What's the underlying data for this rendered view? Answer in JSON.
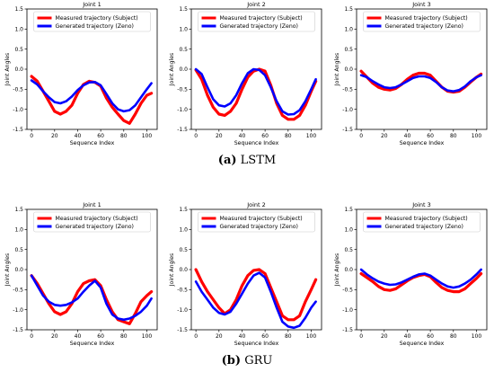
{
  "captions": [
    {
      "label": "(a)",
      "text": "LSTM"
    },
    {
      "label": "(b)",
      "text": "GRU"
    }
  ],
  "colors": {
    "measured": "#ff0000",
    "generated": "#0000ff"
  },
  "chart_data": [
    {
      "type": "line",
      "panel": "LSTM",
      "title": "Joint 1",
      "xlabel": "Sequence Index",
      "ylabel": "Joint Angles",
      "xlim": [
        -4,
        109
      ],
      "ylim": [
        -1.5,
        1.5
      ],
      "xticks": [
        0,
        20,
        40,
        60,
        80,
        100
      ],
      "yticks": [
        "1.5",
        "1.0",
        "0.5",
        "0.0",
        "-0.5",
        "-1.0",
        "-1.5"
      ],
      "legend": "upper center",
      "grid": false,
      "x": [
        0,
        5,
        10,
        15,
        20,
        25,
        30,
        35,
        40,
        45,
        50,
        55,
        60,
        65,
        70,
        75,
        80,
        85,
        90,
        95,
        100,
        104
      ],
      "series": [
        {
          "name": "Measured trajectory (Subject)",
          "values": [
            -0.18,
            -0.3,
            -0.55,
            -0.8,
            -1.05,
            -1.12,
            -1.05,
            -0.9,
            -0.6,
            -0.38,
            -0.3,
            -0.33,
            -0.42,
            -0.72,
            -0.95,
            -1.12,
            -1.28,
            -1.35,
            -1.12,
            -0.85,
            -0.65,
            -0.6
          ]
        },
        {
          "name": "Generated trajectory (Zeno)",
          "values": [
            -0.28,
            -0.38,
            -0.55,
            -0.7,
            -0.82,
            -0.85,
            -0.8,
            -0.68,
            -0.52,
            -0.4,
            -0.33,
            -0.32,
            -0.4,
            -0.62,
            -0.85,
            -1.0,
            -1.05,
            -1.02,
            -0.9,
            -0.7,
            -0.5,
            -0.35
          ]
        }
      ]
    },
    {
      "type": "line",
      "panel": "LSTM",
      "title": "Joint 2",
      "xlabel": "Sequence Index",
      "ylabel": "Joint Angles",
      "xlim": [
        -4,
        109
      ],
      "ylim": [
        -1.5,
        1.5
      ],
      "xticks": [
        0,
        20,
        40,
        60,
        80,
        100
      ],
      "yticks": [
        "1.5",
        "1.0",
        "0.5",
        "0.0",
        "-0.5",
        "-1.0",
        "-1.5"
      ],
      "legend": "upper center",
      "grid": false,
      "x": [
        0,
        5,
        10,
        15,
        20,
        25,
        30,
        35,
        40,
        45,
        50,
        55,
        60,
        65,
        70,
        75,
        80,
        85,
        90,
        95,
        100,
        104
      ],
      "series": [
        {
          "name": "Measured trajectory (Subject)",
          "values": [
            -0.02,
            -0.25,
            -0.65,
            -0.95,
            -1.12,
            -1.15,
            -1.05,
            -0.85,
            -0.5,
            -0.2,
            -0.05,
            0.0,
            -0.05,
            -0.4,
            -0.85,
            -1.15,
            -1.25,
            -1.25,
            -1.15,
            -0.9,
            -0.55,
            -0.3
          ]
        },
        {
          "name": "Generated trajectory (Zeno)",
          "values": [
            0.0,
            -0.12,
            -0.45,
            -0.75,
            -0.9,
            -0.93,
            -0.85,
            -0.65,
            -0.35,
            -0.1,
            0.0,
            -0.02,
            -0.15,
            -0.45,
            -0.8,
            -1.05,
            -1.13,
            -1.12,
            -1.02,
            -0.8,
            -0.5,
            -0.25
          ]
        }
      ]
    },
    {
      "type": "line",
      "panel": "LSTM",
      "title": "Joint 3",
      "xlabel": "Sequence Index",
      "ylabel": "Joint Angles",
      "xlim": [
        -4,
        109
      ],
      "ylim": [
        -1.5,
        1.5
      ],
      "xticks": [
        0,
        20,
        40,
        60,
        80,
        100
      ],
      "yticks": [
        "1.5",
        "1.0",
        "0.5",
        "0.0",
        "-0.5",
        "-1.0",
        "-1.5"
      ],
      "legend": "upper center",
      "grid": false,
      "x": [
        0,
        5,
        10,
        15,
        20,
        25,
        30,
        35,
        40,
        45,
        50,
        55,
        60,
        65,
        70,
        75,
        80,
        85,
        90,
        95,
        100,
        104
      ],
      "series": [
        {
          "name": "Measured trajectory (Subject)",
          "values": [
            -0.05,
            -0.2,
            -0.35,
            -0.45,
            -0.5,
            -0.52,
            -0.48,
            -0.38,
            -0.25,
            -0.15,
            -0.1,
            -0.1,
            -0.15,
            -0.3,
            -0.45,
            -0.55,
            -0.57,
            -0.55,
            -0.45,
            -0.32,
            -0.2,
            -0.12
          ]
        },
        {
          "name": "Generated trajectory (Zeno)",
          "values": [
            -0.15,
            -0.2,
            -0.3,
            -0.38,
            -0.45,
            -0.47,
            -0.45,
            -0.38,
            -0.3,
            -0.22,
            -0.18,
            -0.18,
            -0.22,
            -0.32,
            -0.45,
            -0.53,
            -0.55,
            -0.52,
            -0.43,
            -0.3,
            -0.2,
            -0.15
          ]
        }
      ]
    },
    {
      "type": "line",
      "panel": "GRU",
      "title": "Joint 1",
      "xlabel": "Sequence Index",
      "ylabel": "Joint Angles",
      "xlim": [
        -4,
        109
      ],
      "ylim": [
        -1.5,
        1.5
      ],
      "xticks": [
        0,
        20,
        40,
        60,
        80,
        100
      ],
      "yticks": [
        "1.5",
        "1.0",
        "0.5",
        "0.0",
        "-0.5",
        "-1.0",
        "-1.5"
      ],
      "legend": "upper center",
      "grid": false,
      "x": [
        0,
        5,
        10,
        15,
        20,
        25,
        30,
        35,
        40,
        45,
        50,
        55,
        60,
        65,
        70,
        75,
        80,
        85,
        90,
        95,
        100,
        104
      ],
      "series": [
        {
          "name": "Measured trajectory (Subject)",
          "values": [
            -0.15,
            -0.35,
            -0.6,
            -0.85,
            -1.05,
            -1.12,
            -1.05,
            -0.85,
            -0.55,
            -0.35,
            -0.28,
            -0.25,
            -0.4,
            -0.75,
            -1.05,
            -1.25,
            -1.3,
            -1.35,
            -1.1,
            -0.8,
            -0.65,
            -0.55
          ]
        },
        {
          "name": "Generated trajectory (Zeno)",
          "values": [
            -0.15,
            -0.4,
            -0.65,
            -0.8,
            -0.88,
            -0.9,
            -0.88,
            -0.82,
            -0.72,
            -0.55,
            -0.4,
            -0.28,
            -0.45,
            -0.85,
            -1.12,
            -1.22,
            -1.25,
            -1.22,
            -1.15,
            -1.05,
            -0.9,
            -0.72
          ]
        }
      ]
    },
    {
      "type": "line",
      "panel": "GRU",
      "title": "Joint 2",
      "xlabel": "Sequence Index",
      "ylabel": "Joint Angles",
      "xlim": [
        -4,
        109
      ],
      "ylim": [
        -1.5,
        1.5
      ],
      "xticks": [
        0,
        20,
        40,
        60,
        80,
        100
      ],
      "yticks": [
        "1.5",
        "1.0",
        "0.5",
        "0.0",
        "-0.5",
        "-1.0",
        "-1.5"
      ],
      "legend": "upper center",
      "grid": false,
      "x": [
        0,
        5,
        10,
        15,
        20,
        25,
        30,
        35,
        40,
        45,
        50,
        55,
        60,
        65,
        70,
        75,
        80,
        85,
        90,
        95,
        100,
        104
      ],
      "series": [
        {
          "name": "Measured trajectory (Subject)",
          "values": [
            0.0,
            -0.3,
            -0.55,
            -0.75,
            -0.95,
            -1.1,
            -1.0,
            -0.75,
            -0.4,
            -0.15,
            -0.02,
            0.0,
            -0.1,
            -0.45,
            -0.8,
            -1.15,
            -1.25,
            -1.25,
            -1.15,
            -0.8,
            -0.5,
            -0.25
          ]
        },
        {
          "name": "Generated trajectory (Zeno)",
          "values": [
            -0.3,
            -0.55,
            -0.75,
            -0.95,
            -1.08,
            -1.12,
            -1.05,
            -0.85,
            -0.6,
            -0.35,
            -0.15,
            -0.08,
            -0.2,
            -0.55,
            -0.95,
            -1.3,
            -1.42,
            -1.45,
            -1.4,
            -1.2,
            -0.95,
            -0.8
          ]
        }
      ]
    },
    {
      "type": "line",
      "panel": "GRU",
      "title": "Joint 3",
      "xlabel": "Sequence Index",
      "ylabel": "Joint Angles",
      "xlim": [
        -4,
        109
      ],
      "ylim": [
        -1.5,
        1.5
      ],
      "xticks": [
        0,
        20,
        40,
        60,
        80,
        100
      ],
      "yticks": [
        "1.5",
        "1.0",
        "0.5",
        "0.0",
        "-0.5",
        "-1.0",
        "-1.5"
      ],
      "legend": "upper center",
      "grid": false,
      "x": [
        0,
        5,
        10,
        15,
        20,
        25,
        30,
        35,
        40,
        45,
        50,
        55,
        60,
        65,
        70,
        75,
        80,
        85,
        90,
        95,
        100,
        104
      ],
      "series": [
        {
          "name": "Measured trajectory (Subject)",
          "values": [
            -0.1,
            -0.2,
            -0.3,
            -0.42,
            -0.5,
            -0.52,
            -0.48,
            -0.38,
            -0.28,
            -0.2,
            -0.15,
            -0.12,
            -0.18,
            -0.32,
            -0.45,
            -0.52,
            -0.55,
            -0.55,
            -0.48,
            -0.35,
            -0.22,
            -0.1
          ]
        },
        {
          "name": "Generated trajectory (Zeno)",
          "values": [
            0.0,
            -0.12,
            -0.22,
            -0.3,
            -0.35,
            -0.38,
            -0.37,
            -0.32,
            -0.25,
            -0.18,
            -0.12,
            -0.1,
            -0.15,
            -0.25,
            -0.35,
            -0.42,
            -0.45,
            -0.42,
            -0.35,
            -0.25,
            -0.12,
            0.0
          ]
        }
      ]
    }
  ]
}
